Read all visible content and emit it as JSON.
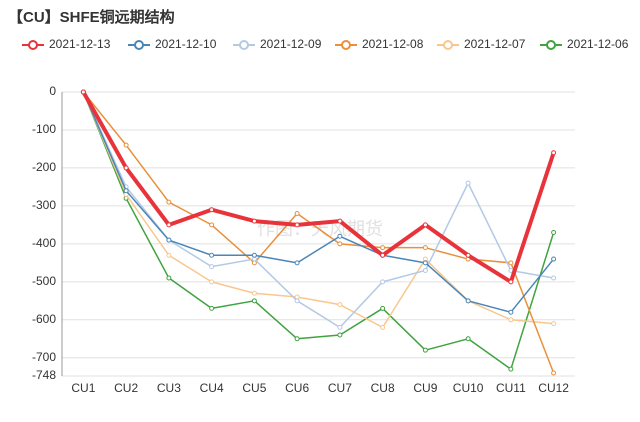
{
  "chart_data": {
    "type": "line",
    "title": "【CU】SHFE铜远期结构",
    "watermark": "作图：天风期货",
    "categories": [
      "CU1",
      "CU2",
      "CU3",
      "CU4",
      "CU5",
      "CU6",
      "CU7",
      "CU8",
      "CU9",
      "CU10",
      "CU11",
      "CU12"
    ],
    "ylim": [
      -748,
      0
    ],
    "yticks": [
      0,
      -100,
      -200,
      -300,
      -400,
      -500,
      -600,
      -700,
      -748
    ],
    "grid": true,
    "series": [
      {
        "name": "2021-12-13",
        "color": "#e8333a",
        "values": [
          0,
          -200,
          -350,
          -310,
          -340,
          -350,
          -340,
          -430,
          -350,
          -430,
          -500,
          -160
        ]
      },
      {
        "name": "2021-12-10",
        "color": "#4b86b8",
        "values": [
          0,
          -260,
          -390,
          -430,
          -430,
          -450,
          -380,
          -430,
          -450,
          -550,
          -580,
          -440
        ]
      },
      {
        "name": "2021-12-09",
        "color": "#b3c9e6",
        "values": [
          0,
          -250,
          -390,
          -460,
          -440,
          -550,
          -620,
          -500,
          -470,
          -240,
          -470,
          -490
        ]
      },
      {
        "name": "2021-12-08",
        "color": "#e8903a",
        "values": [
          0,
          -140,
          -290,
          -350,
          -450,
          -320,
          -400,
          -410,
          -410,
          -440,
          -450,
          -740
        ]
      },
      {
        "name": "2021-12-07",
        "color": "#f8c78e",
        "values": [
          0,
          -270,
          -430,
          -500,
          -530,
          -540,
          -560,
          -620,
          -440,
          -550,
          -600,
          -610
        ]
      },
      {
        "name": "2021-12-06",
        "color": "#3fa33f",
        "values": [
          0,
          -280,
          -490,
          -570,
          -550,
          -650,
          -640,
          -570,
          -680,
          -650,
          -730,
          -370
        ]
      }
    ]
  }
}
